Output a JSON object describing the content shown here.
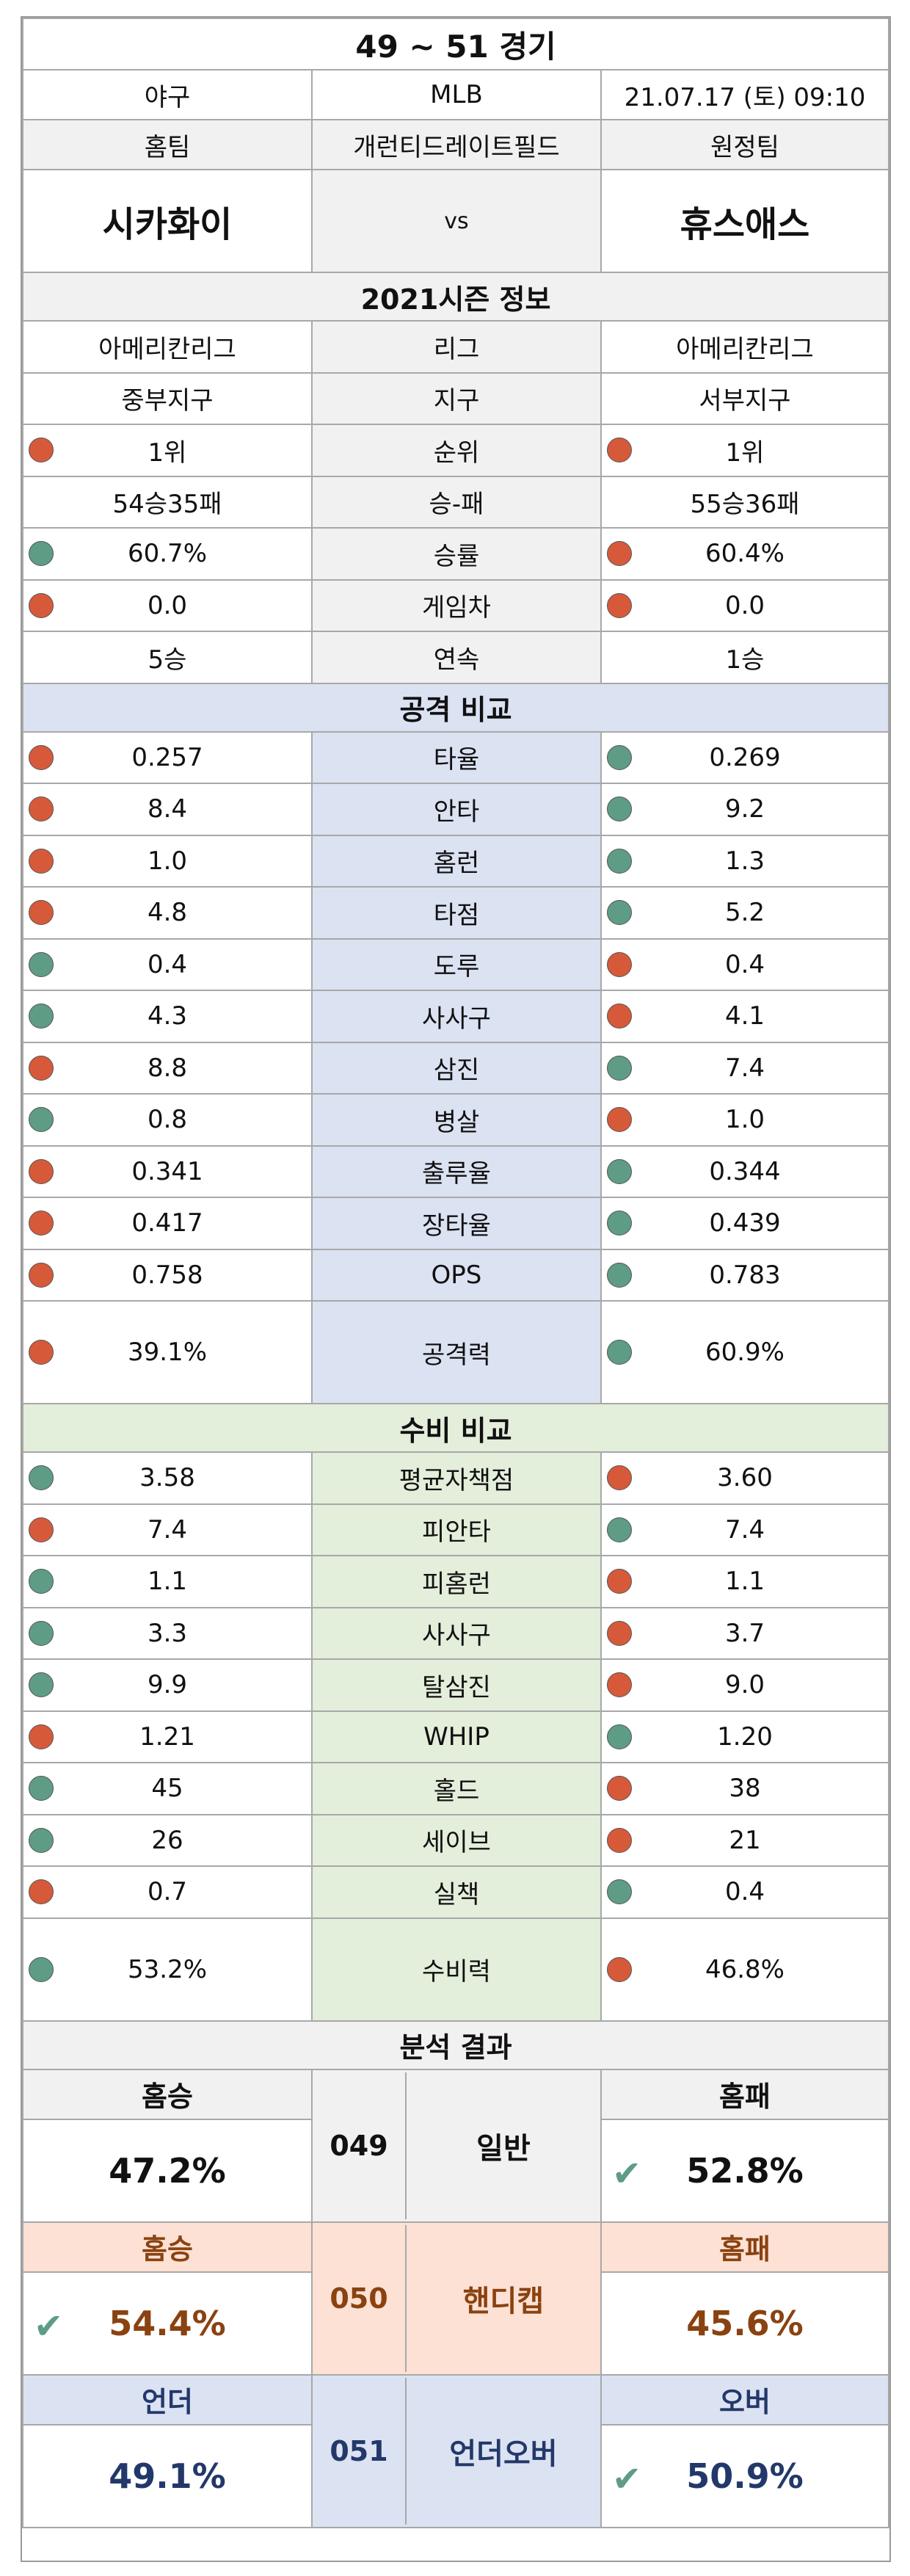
{
  "header": {
    "title": "49 ~ 51 경기",
    "sport": "야구",
    "league": "MLB",
    "datetime": "21.07.17 (토) 09:10",
    "home_label": "홈팀",
    "venue": "개런티드레이트필드",
    "away_label": "원정팀",
    "home_team": "시카화이",
    "vs": "vs",
    "away_team": "휴스애스"
  },
  "season": {
    "title": "2021시즌 정보",
    "rows": [
      {
        "label": "리그",
        "home": "아메리칸리그",
        "away": "아메리칸리그",
        "home_dot": "",
        "away_dot": ""
      },
      {
        "label": "지구",
        "home": "중부지구",
        "away": "서부지구",
        "home_dot": "",
        "away_dot": ""
      },
      {
        "label": "순위",
        "home": "1위",
        "away": "1위",
        "home_dot": "red",
        "away_dot": "red"
      },
      {
        "label": "승-패",
        "home": "54승35패",
        "away": "55승36패",
        "home_dot": "",
        "away_dot": ""
      },
      {
        "label": "승률",
        "home": "60.7%",
        "away": "60.4%",
        "home_dot": "green",
        "away_dot": "red"
      },
      {
        "label": "게임차",
        "home": "0.0",
        "away": "0.0",
        "home_dot": "red",
        "away_dot": "red"
      },
      {
        "label": "연속",
        "home": "5승",
        "away": "1승",
        "home_dot": "",
        "away_dot": ""
      }
    ]
  },
  "attack": {
    "title": "공격 비교",
    "rows": [
      {
        "label": "타율",
        "home": "0.257",
        "away": "0.269",
        "home_dot": "red",
        "away_dot": "green"
      },
      {
        "label": "안타",
        "home": "8.4",
        "away": "9.2",
        "home_dot": "red",
        "away_dot": "green"
      },
      {
        "label": "홈런",
        "home": "1.0",
        "away": "1.3",
        "home_dot": "red",
        "away_dot": "green"
      },
      {
        "label": "타점",
        "home": "4.8",
        "away": "5.2",
        "home_dot": "red",
        "away_dot": "green"
      },
      {
        "label": "도루",
        "home": "0.4",
        "away": "0.4",
        "home_dot": "green",
        "away_dot": "red"
      },
      {
        "label": "사사구",
        "home": "4.3",
        "away": "4.1",
        "home_dot": "green",
        "away_dot": "red"
      },
      {
        "label": "삼진",
        "home": "8.8",
        "away": "7.4",
        "home_dot": "red",
        "away_dot": "green"
      },
      {
        "label": "병살",
        "home": "0.8",
        "away": "1.0",
        "home_dot": "green",
        "away_dot": "red"
      },
      {
        "label": "출루율",
        "home": "0.341",
        "away": "0.344",
        "home_dot": "red",
        "away_dot": "green"
      },
      {
        "label": "장타율",
        "home": "0.417",
        "away": "0.439",
        "home_dot": "red",
        "away_dot": "green"
      },
      {
        "label": "OPS",
        "home": "0.758",
        "away": "0.783",
        "home_dot": "red",
        "away_dot": "green"
      },
      {
        "label": "공격력",
        "home": "39.1%",
        "away": "60.9%",
        "home_dot": "red",
        "away_dot": "green",
        "tall": true
      }
    ]
  },
  "defense": {
    "title": "수비 비교",
    "rows": [
      {
        "label": "평균자책점",
        "home": "3.58",
        "away": "3.60",
        "home_dot": "green",
        "away_dot": "red"
      },
      {
        "label": "피안타",
        "home": "7.4",
        "away": "7.4",
        "home_dot": "red",
        "away_dot": "green"
      },
      {
        "label": "피홈런",
        "home": "1.1",
        "away": "1.1",
        "home_dot": "green",
        "away_dot": "red"
      },
      {
        "label": "사사구",
        "home": "3.3",
        "away": "3.7",
        "home_dot": "green",
        "away_dot": "red"
      },
      {
        "label": "탈삼진",
        "home": "9.9",
        "away": "9.0",
        "home_dot": "green",
        "away_dot": "red"
      },
      {
        "label": "WHIP",
        "home": "1.21",
        "away": "1.20",
        "home_dot": "red",
        "away_dot": "green"
      },
      {
        "label": "홀드",
        "home": "45",
        "away": "38",
        "home_dot": "green",
        "away_dot": "red"
      },
      {
        "label": "세이브",
        "home": "26",
        "away": "21",
        "home_dot": "green",
        "away_dot": "red"
      },
      {
        "label": "실책",
        "home": "0.7",
        "away": "0.4",
        "home_dot": "red",
        "away_dot": "green"
      },
      {
        "label": "수비력",
        "home": "53.2%",
        "away": "46.8%",
        "home_dot": "green",
        "away_dot": "red",
        "tall": true
      }
    ]
  },
  "analysis": {
    "title": "분석 결과",
    "blocks": [
      {
        "left_head": "홈승",
        "left_value": "47.2%",
        "left_check": false,
        "code": "049",
        "label": "일반",
        "right_head": "홈패",
        "right_value": "52.8%",
        "right_check": true
      },
      {
        "left_head": "홈승",
        "left_value": "54.4%",
        "left_check": true,
        "code": "050",
        "label": "핸디캡",
        "right_head": "홈패",
        "right_value": "45.6%",
        "right_check": false
      },
      {
        "left_head": "언더",
        "left_value": "49.1%",
        "left_check": false,
        "code": "051",
        "label": "언더오버",
        "right_head": "오버",
        "right_value": "50.9%",
        "right_check": true
      }
    ]
  },
  "colors": {
    "dot_red": "#d65a3a",
    "dot_green": "#5e9c86",
    "attack_bg": "#dbe2f2",
    "defense_bg": "#e3eedb",
    "handicap_bg": "#fce1d4",
    "handicap_text": "#8a4210",
    "underover_text": "#23386a",
    "check": "#5e9c86"
  },
  "icons": {
    "indicator": "circle-dot",
    "pick": "check-mark"
  }
}
